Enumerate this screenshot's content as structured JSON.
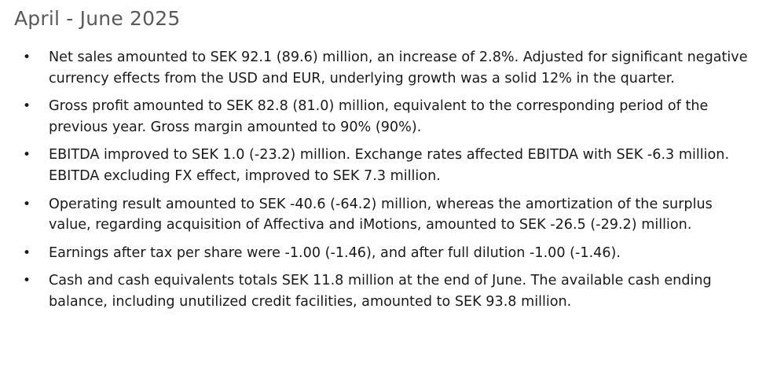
{
  "heading": "April - June 2025",
  "bullet_symbol": "•",
  "bullets": [
    "Net sales amounted to SEK 92.1 (89.6) million, an increase of 2.8%. Adjusted for significant negative currency effects from the USD and EUR, underlying growth was a solid 12% in the quarter.",
    "Gross profit amounted to SEK 82.8 (81.0) million, equivalent to the corresponding period of the previous year. Gross margin amounted to 90% (90%).",
    "EBITDA improved to SEK 1.0 (-23.2) million. Exchange rates affected EBITDA with SEK -6.3 million. EBITDA excluding FX effect, improved to SEK 7.3 million.",
    "Operating result amounted to SEK -40.6 (-64.2) million, whereas the amortization of the surplus value, regarding acquisition of Affectiva and iMotions, amounted to SEK -26.5 (-29.2) million.",
    "Earnings after tax per share were -1.00 (-1.46), and after full dilution -1.00 (-1.46).",
    "Cash and cash equivalents totals SEK 11.8 million at the end of June. The available cash ending balance, including unutilized credit facilities, amounted to SEK 93.8 million."
  ]
}
